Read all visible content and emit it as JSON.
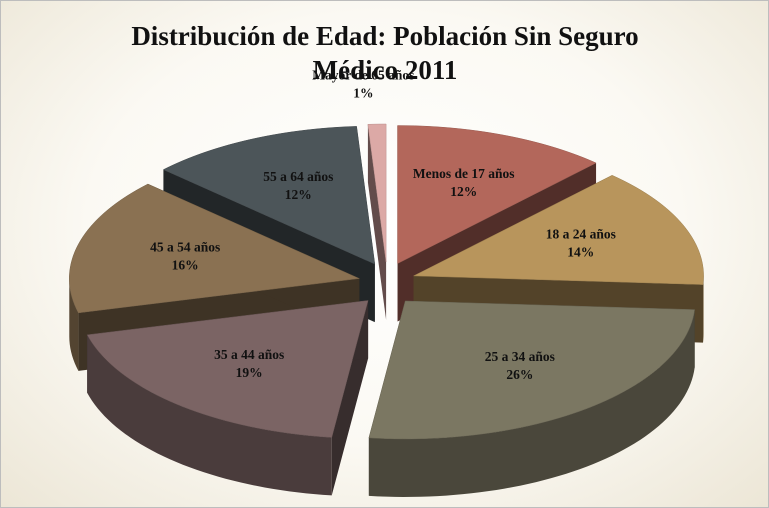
{
  "chart_data": {
    "type": "pie",
    "title": "Distribución de Edad: Población Sin Seguro Médico 2011",
    "categories": [
      "Menos de 17 años",
      "18 a 24 años",
      "25 a 34 años",
      "35 a 44 años",
      "45 a 54 años",
      "55 a 64 años",
      "Mayor de 65 años"
    ],
    "values": [
      12,
      14,
      26,
      19,
      16,
      12,
      1
    ],
    "value_labels": [
      "12%",
      "14%",
      "26%",
      "19%",
      "16%",
      "12%",
      "1%"
    ],
    "colors": [
      "#b3675b",
      "#b8955c",
      "#7b7762",
      "#7b6464",
      "#8a7152",
      "#4c5559",
      "#dca9a6"
    ]
  }
}
